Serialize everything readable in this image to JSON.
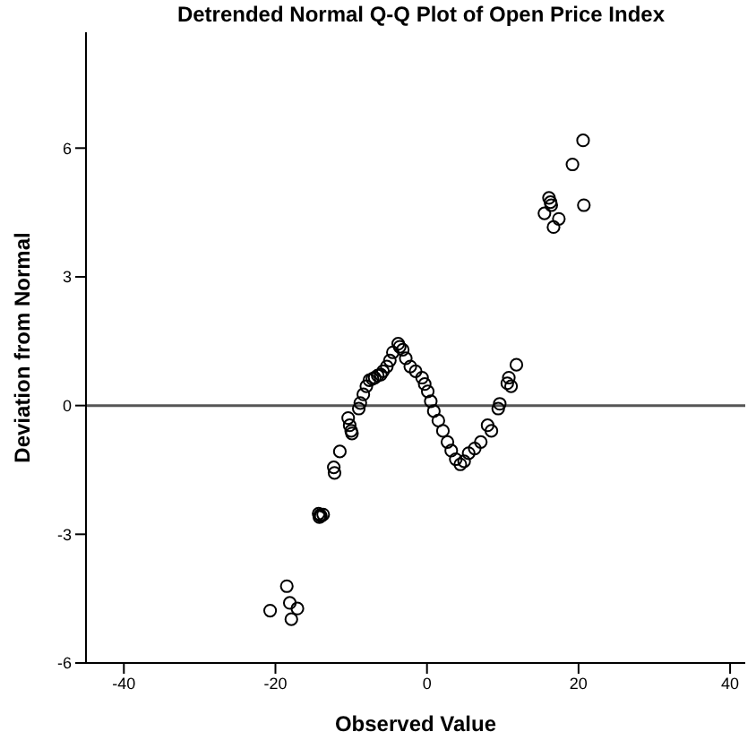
{
  "chart_data": {
    "type": "scatter",
    "title": "Detrended Normal Q-Q Plot of Open Price Index",
    "xlabel": "Observed Value",
    "ylabel": "Deviation from Normal",
    "xlim": [
      -45,
      42
    ],
    "ylim": [
      -6,
      8.7
    ],
    "xticks": [
      -40,
      -20,
      0,
      20,
      40
    ],
    "yticks": [
      -6,
      -3,
      0,
      3,
      6
    ],
    "marker": "circle",
    "color": "#000000",
    "ref_lines": [
      {
        "axis": "y",
        "value": 0,
        "color": "#555555"
      }
    ],
    "x": [
      20.6,
      19.2,
      20.7,
      16.1,
      16.4,
      15.5,
      17.4,
      16.7,
      16.3,
      -18.5,
      -18.1,
      -17.1,
      -20.7,
      -17.9,
      -14.1,
      -14.3,
      -14.0,
      -13.7,
      -14.2,
      -12.3,
      -12.2,
      -11.5,
      -10.4,
      -10.2,
      -10.0,
      -9.9,
      -9.0,
      -8.8,
      -8.4,
      -8.0,
      -7.6,
      -7.2,
      -6.9,
      -6.5,
      -6.1,
      -5.8,
      -5.3,
      -4.9,
      -4.5,
      -3.8,
      -3.6,
      -3.2,
      -2.8,
      -2.2,
      -1.5,
      -0.65,
      -0.3,
      0.1,
      0.5,
      0.9,
      1.5,
      2.1,
      2.7,
      3.2,
      3.8,
      4.4,
      4.9,
      5.5,
      6.3,
      7.1,
      8.0,
      8.5,
      9.4,
      9.6,
      10.6,
      10.8,
      11.1,
      11.8
    ],
    "values": [
      6.18,
      5.62,
      4.67,
      4.84,
      4.67,
      4.48,
      4.35,
      4.16,
      4.74,
      -4.21,
      -4.6,
      -4.73,
      -4.78,
      -4.98,
      -2.55,
      -2.52,
      -2.58,
      -2.54,
      -2.6,
      -1.44,
      -1.57,
      -1.07,
      -0.29,
      -0.46,
      -0.59,
      -0.65,
      -0.07,
      0.06,
      0.26,
      0.45,
      0.59,
      0.62,
      0.65,
      0.7,
      0.72,
      0.8,
      0.91,
      1.05,
      1.24,
      1.44,
      1.37,
      1.3,
      1.1,
      0.91,
      0.8,
      0.65,
      0.5,
      0.33,
      0.1,
      -0.13,
      -0.35,
      -0.59,
      -0.85,
      -1.05,
      -1.25,
      -1.37,
      -1.3,
      -1.11,
      -1.0,
      -0.85,
      -0.46,
      -0.59,
      -0.07,
      0.04,
      0.52,
      0.65,
      0.45,
      0.95
    ]
  }
}
